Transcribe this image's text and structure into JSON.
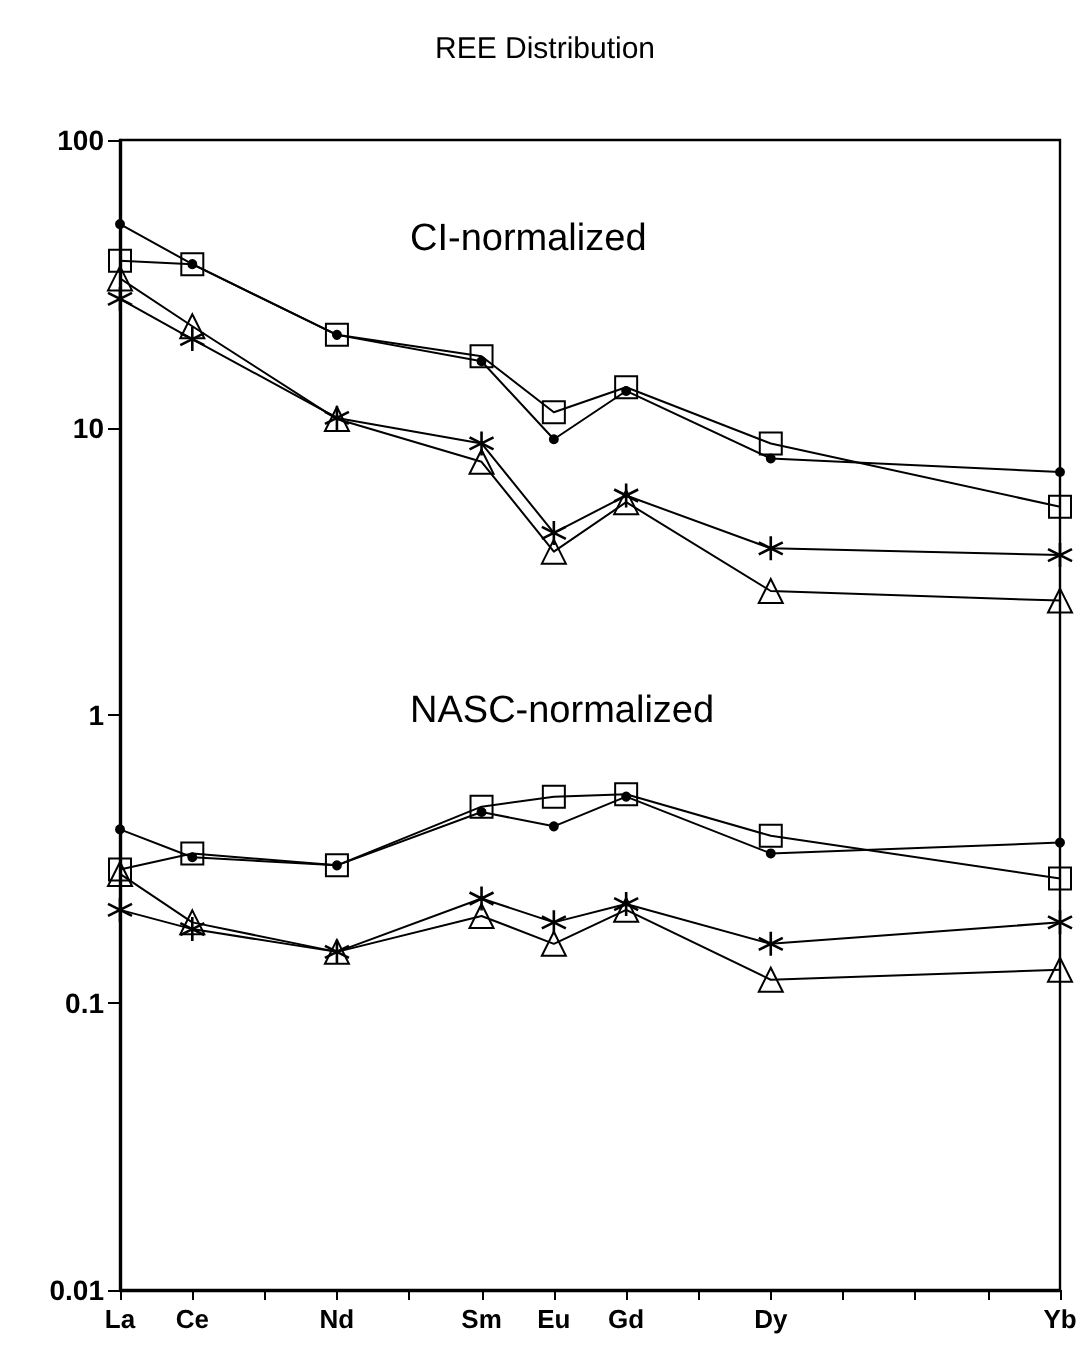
{
  "chart_data": {
    "type": "line",
    "title": "REE Distribution",
    "categories": [
      "La",
      "Ce",
      null,
      "Nd",
      null,
      "Sm",
      "Eu",
      "Gd",
      null,
      "Dy",
      null,
      null,
      null,
      "Yb"
    ],
    "log": "y",
    "ylim": [
      0.01,
      100
    ],
    "yticks": [
      0.01,
      0.1,
      1,
      10,
      100
    ],
    "grid": false,
    "line_style": "solid",
    "annotations": [
      "CI-normalized",
      "NASC-normalized"
    ],
    "series": [
      {
        "color": "#000000",
        "marker": "circle",
        "values": [
          51,
          37,
          null,
          21,
          null,
          17,
          9.1,
          13.4,
          null,
          7.8,
          null,
          null,
          null,
          7.0
        ]
      },
      {
        "color": "#000000",
        "marker": "square",
        "values": [
          38,
          37,
          null,
          21,
          null,
          17.7,
          11.3,
          13.8,
          null,
          8.8,
          null,
          null,
          null,
          5.3
        ]
      },
      {
        "color": "#000000",
        "marker": "cross",
        "values": [
          28,
          20.3,
          null,
          10.8,
          null,
          8.8,
          4.3,
          5.8,
          null,
          3.8,
          null,
          null,
          null,
          3.6
        ]
      },
      {
        "color": "#000000",
        "marker": "triangle",
        "values": [
          33,
          22.5,
          null,
          10.7,
          null,
          7.6,
          3.7,
          5.5,
          null,
          2.7,
          null,
          null,
          null,
          2.5
        ]
      },
      {
        "color": "#000000",
        "marker": "circle",
        "values": [
          0.4,
          0.32,
          null,
          0.3,
          null,
          0.46,
          0.41,
          0.52,
          null,
          0.33,
          null,
          null,
          null,
          0.36
        ]
      },
      {
        "color": "#000000",
        "marker": "square",
        "values": [
          0.29,
          0.33,
          null,
          0.3,
          null,
          0.48,
          0.52,
          0.53,
          null,
          0.38,
          null,
          null,
          null,
          0.27
        ]
      },
      {
        "color": "#000000",
        "marker": "cross",
        "values": [
          0.21,
          0.18,
          null,
          0.15,
          null,
          0.23,
          0.19,
          0.22,
          null,
          0.16,
          null,
          null,
          null,
          0.19
        ]
      },
      {
        "color": "#000000",
        "marker": "triangle",
        "values": [
          0.28,
          0.19,
          null,
          0.15,
          null,
          0.2,
          0.16,
          0.21,
          null,
          0.12,
          null,
          null,
          null,
          0.13
        ]
      }
    ]
  }
}
